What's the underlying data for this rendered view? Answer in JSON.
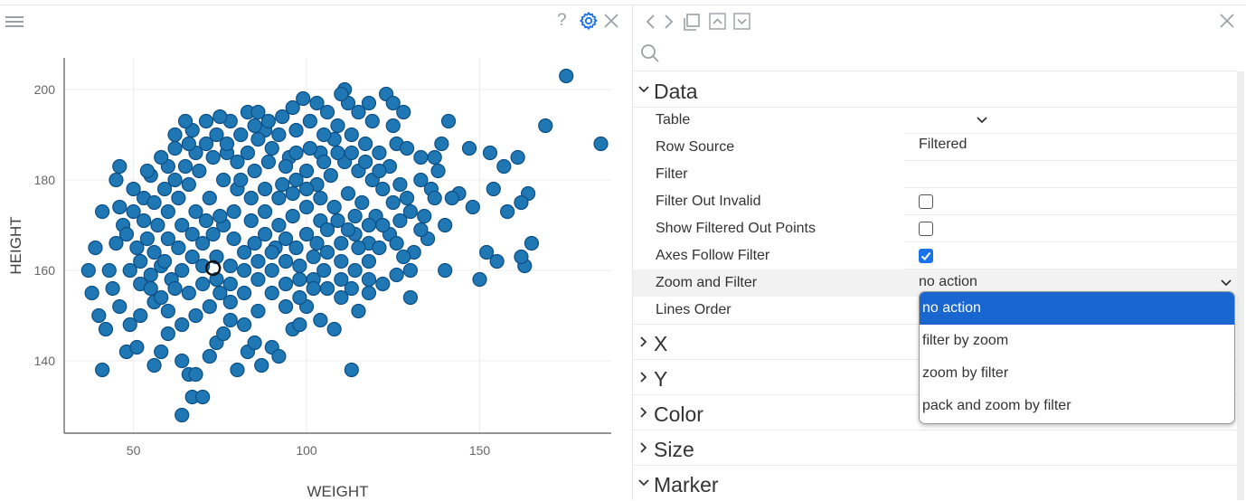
{
  "chart": {
    "xlabel": "WEIGHT",
    "ylabel": "HEIGHT",
    "xlim": [
      30,
      188
    ],
    "ylim": [
      124,
      207
    ],
    "xticks": [
      "50",
      "100",
      "150"
    ],
    "yticks": [
      "140",
      "160",
      "180",
      "200"
    ],
    "point_color": "#1f77b4",
    "selected_point": {
      "x": 73,
      "y": 160.5
    }
  },
  "chart_toolbar": {
    "help": "?"
  },
  "chart_data": {
    "type": "scatter",
    "title": "",
    "xlabel": "WEIGHT",
    "ylabel": "HEIGHT",
    "xlim": [
      30,
      188
    ],
    "ylim": [
      124,
      207
    ],
    "grid": true,
    "series": [
      {
        "color": "#1f77b4",
        "points": [
          [
            175,
            203
          ],
          [
            185,
            188
          ],
          [
            169,
            192
          ],
          [
            164,
            177
          ],
          [
            161,
            185
          ],
          [
            153,
            186
          ],
          [
            157,
            183
          ],
          [
            154,
            178
          ],
          [
            162,
            175
          ],
          [
            165,
            166
          ],
          [
            163,
            161
          ],
          [
            162,
            163
          ],
          [
            150,
            158
          ],
          [
            152,
            164
          ],
          [
            158,
            173
          ],
          [
            155,
            162
          ],
          [
            148,
            174
          ],
          [
            144,
            177
          ],
          [
            147,
            187
          ],
          [
            137,
            185
          ],
          [
            142,
            176
          ],
          [
            138,
            182
          ],
          [
            140,
            170
          ],
          [
            135,
            167
          ],
          [
            133,
            169
          ],
          [
            140,
            160
          ],
          [
            131,
            164
          ],
          [
            130,
            154
          ],
          [
            129,
            176
          ],
          [
            133,
            185
          ],
          [
            128,
            195
          ],
          [
            123,
            199
          ],
          [
            125,
            197
          ],
          [
            118,
            197
          ],
          [
            111,
            200
          ],
          [
            112,
            197
          ],
          [
            108,
            189
          ],
          [
            110,
            199
          ],
          [
            113,
            138
          ],
          [
            99,
            198
          ],
          [
            106,
            195
          ],
          [
            104,
            186
          ],
          [
            95,
            185
          ],
          [
            92,
            190
          ],
          [
            88,
            191
          ],
          [
            83,
            195
          ],
          [
            78,
            193
          ],
          [
            75,
            194
          ],
          [
            71,
            193
          ],
          [
            67,
            191
          ],
          [
            65,
            193
          ],
          [
            62,
            187
          ],
          [
            60,
            183
          ],
          [
            55,
            181
          ],
          [
            53,
            176
          ],
          [
            46,
            183
          ],
          [
            45,
            180
          ],
          [
            41,
            173
          ],
          [
            39,
            165
          ],
          [
            37,
            160
          ],
          [
            38,
            155
          ],
          [
            40,
            150
          ],
          [
            42,
            147
          ],
          [
            41,
            138
          ],
          [
            48,
            142
          ],
          [
            51,
            143
          ],
          [
            56,
            139
          ],
          [
            58,
            142
          ],
          [
            60,
            146
          ],
          [
            64,
            140
          ],
          [
            66,
            137
          ],
          [
            68,
            137
          ],
          [
            67,
            132
          ],
          [
            70,
            132
          ],
          [
            64,
            128
          ],
          [
            72,
            141
          ],
          [
            74,
            144
          ],
          [
            76,
            146
          ],
          [
            78,
            149
          ],
          [
            80,
            138
          ],
          [
            83,
            142
          ],
          [
            85,
            144
          ],
          [
            87,
            139
          ],
          [
            90,
            143
          ],
          [
            92,
            141
          ],
          [
            96,
            147
          ],
          [
            98,
            148
          ],
          [
            100,
            152
          ],
          [
            104,
            149
          ],
          [
            108,
            147
          ],
          [
            110,
            154
          ],
          [
            113,
            156
          ],
          [
            115,
            151
          ],
          [
            118,
            155
          ],
          [
            122,
            157
          ],
          [
            126,
            159
          ],
          [
            128,
            163
          ],
          [
            118,
            166
          ],
          [
            114,
            168
          ],
          [
            110,
            162
          ],
          [
            105,
            160
          ],
          [
            102,
            163
          ],
          [
            98,
            158
          ],
          [
            94,
            157
          ],
          [
            90,
            155
          ],
          [
            86,
            151
          ],
          [
            82,
            148
          ],
          [
            78,
            157
          ],
          [
            75,
            155
          ],
          [
            72,
            152
          ],
          [
            68,
            150
          ],
          [
            64,
            148
          ],
          [
            60,
            151
          ],
          [
            56,
            153
          ],
          [
            52,
            150
          ],
          [
            49,
            148
          ],
          [
            46,
            152
          ],
          [
            44,
            156
          ],
          [
            43,
            160
          ],
          [
            45,
            166
          ],
          [
            47,
            170
          ],
          [
            50,
            173
          ],
          [
            53,
            171
          ],
          [
            56,
            175
          ],
          [
            59,
            178
          ],
          [
            62,
            180
          ],
          [
            65,
            183
          ],
          [
            68,
            186
          ],
          [
            71,
            188
          ],
          [
            74,
            190
          ],
          [
            77,
            186
          ],
          [
            80,
            184
          ],
          [
            83,
            186
          ],
          [
            86,
            189
          ],
          [
            90,
            187
          ],
          [
            94,
            183
          ],
          [
            97,
            180
          ],
          [
            100,
            182
          ],
          [
            103,
            179
          ],
          [
            107,
            181
          ],
          [
            111,
            184
          ],
          [
            115,
            182
          ],
          [
            119,
            180
          ],
          [
            122,
            178
          ],
          [
            125,
            175
          ],
          [
            120,
            172
          ],
          [
            116,
            175
          ],
          [
            112,
            177
          ],
          [
            108,
            174
          ],
          [
            104,
            171
          ],
          [
            100,
            174
          ],
          [
            96,
            172
          ],
          [
            92,
            170
          ],
          [
            88,
            173
          ],
          [
            84,
            176
          ],
          [
            80,
            178
          ],
          [
            76,
            180
          ],
          [
            72,
            176
          ],
          [
            68,
            173
          ],
          [
            64,
            170
          ],
          [
            60,
            167
          ],
          [
            56,
            164
          ],
          [
            52,
            162
          ],
          [
            49,
            160
          ],
          [
            52,
            157
          ],
          [
            55,
            159
          ],
          [
            58,
            161
          ],
          [
            61,
            158
          ],
          [
            64,
            160
          ],
          [
            67,
            163
          ],
          [
            70,
            166
          ],
          [
            73,
            168
          ],
          [
            76,
            170
          ],
          [
            79,
            167
          ],
          [
            82,
            164
          ],
          [
            85,
            166
          ],
          [
            88,
            168
          ],
          [
            91,
            165
          ],
          [
            94,
            167
          ],
          [
            97,
            165
          ],
          [
            100,
            168
          ],
          [
            103,
            166
          ],
          [
            106,
            169
          ],
          [
            109,
            171
          ],
          [
            112,
            169
          ],
          [
            115,
            165
          ],
          [
            118,
            162
          ],
          [
            121,
            165
          ],
          [
            124,
            168
          ],
          [
            127,
            171
          ],
          [
            130,
            173
          ],
          [
            127,
            179
          ],
          [
            124,
            183
          ],
          [
            121,
            186
          ],
          [
            117,
            188
          ],
          [
            113,
            190
          ],
          [
            109,
            192
          ],
          [
            105,
            190
          ],
          [
            101,
            193
          ],
          [
            97,
            191
          ],
          [
            93,
            194
          ],
          [
            89,
            193
          ],
          [
            85,
            192
          ],
          [
            81,
            190
          ],
          [
            77,
            188
          ],
          [
            73,
            185
          ],
          [
            69,
            182
          ],
          [
            66,
            179
          ],
          [
            63,
            176
          ],
          [
            60,
            173
          ],
          [
            57,
            170
          ],
          [
            54,
            167
          ],
          [
            51,
            165
          ],
          [
            48,
            168
          ],
          [
            46,
            174
          ],
          [
            50,
            178
          ],
          [
            54,
            182
          ],
          [
            58,
            185
          ],
          [
            62,
            190
          ],
          [
            66,
            188
          ],
          [
            70,
            161
          ],
          [
            74,
            163
          ],
          [
            78,
            161
          ],
          [
            82,
            160
          ],
          [
            86,
            158
          ],
          [
            90,
            160
          ],
          [
            94,
            162
          ],
          [
            98,
            161
          ],
          [
            102,
            158
          ],
          [
            106,
            156
          ],
          [
            110,
            158
          ],
          [
            114,
            160
          ],
          [
            118,
            158
          ],
          [
            84,
            171
          ],
          [
            88,
            178
          ],
          [
            92,
            176
          ],
          [
            96,
            177
          ],
          [
            100,
            178
          ],
          [
            104,
            176
          ],
          [
            79,
            173
          ],
          [
            75,
            172
          ],
          [
            71,
            171
          ],
          [
            67,
            168
          ],
          [
            63,
            165
          ],
          [
            59,
            162
          ],
          [
            55,
            156
          ],
          [
            58,
            154
          ],
          [
            62,
            156
          ],
          [
            66,
            155
          ],
          [
            70,
            157
          ],
          [
            74,
            158
          ],
          [
            78,
            153
          ],
          [
            82,
            155
          ],
          [
            86,
            162
          ],
          [
            90,
            164
          ],
          [
            94,
            152
          ],
          [
            98,
            154
          ],
          [
            102,
            156
          ],
          [
            106,
            164
          ],
          [
            110,
            166
          ],
          [
            114,
            172
          ],
          [
            118,
            170
          ],
          [
            122,
            170
          ],
          [
            126,
            166
          ],
          [
            130,
            160
          ],
          [
            134,
            172
          ],
          [
            136,
            178
          ],
          [
            139,
            188
          ],
          [
            141,
            193
          ],
          [
            126,
            188
          ],
          [
            119,
            193
          ],
          [
            115,
            195
          ],
          [
            103,
            197
          ],
          [
            96,
            196
          ],
          [
            86,
            195
          ],
          [
            81,
            180
          ],
          [
            85,
            182
          ],
          [
            89,
            184
          ],
          [
            93,
            179
          ],
          [
            97,
            186
          ],
          [
            101,
            187
          ],
          [
            105,
            184
          ],
          [
            109,
            186
          ],
          [
            113,
            186
          ],
          [
            117,
            184
          ],
          [
            121,
            182
          ],
          [
            125,
            192
          ],
          [
            129,
            187
          ],
          [
            133,
            180
          ],
          [
            137,
            176
          ]
        ]
      }
    ]
  },
  "panel": {
    "toolbar_icons": [
      "chevron-left-icon",
      "chevron-right-icon",
      "copy-icon",
      "chevron-up-box-icon",
      "chevron-down-box-icon",
      "close-icon"
    ],
    "sections": [
      {
        "label": "Data",
        "expanded": true
      },
      {
        "label": "X",
        "expanded": false
      },
      {
        "label": "Y",
        "expanded": false
      },
      {
        "label": "Color",
        "expanded": false
      },
      {
        "label": "Size",
        "expanded": false
      },
      {
        "label": "Marker",
        "expanded": true
      }
    ],
    "data_rows": {
      "table": {
        "label": "Table",
        "value": ""
      },
      "row_source": {
        "label": "Row Source",
        "value": "Filtered"
      },
      "filter": {
        "label": "Filter",
        "value": ""
      },
      "filter_out_invalid": {
        "label": "Filter Out Invalid",
        "checked": false
      },
      "show_filtered_out_points": {
        "label": "Show Filtered Out Points",
        "checked": false
      },
      "axes_follow_filter": {
        "label": "Axes Follow Filter",
        "checked": true
      },
      "zoom_and_filter": {
        "label": "Zoom and Filter",
        "value": "no action"
      },
      "lines_order": {
        "label": "Lines Order",
        "value": ""
      }
    },
    "zoom_dropdown": {
      "options": [
        "no action",
        "filter by zoom",
        "zoom by filter",
        "pack and zoom by filter"
      ],
      "selected": "no action"
    },
    "accent_color": "#1a73e8"
  }
}
